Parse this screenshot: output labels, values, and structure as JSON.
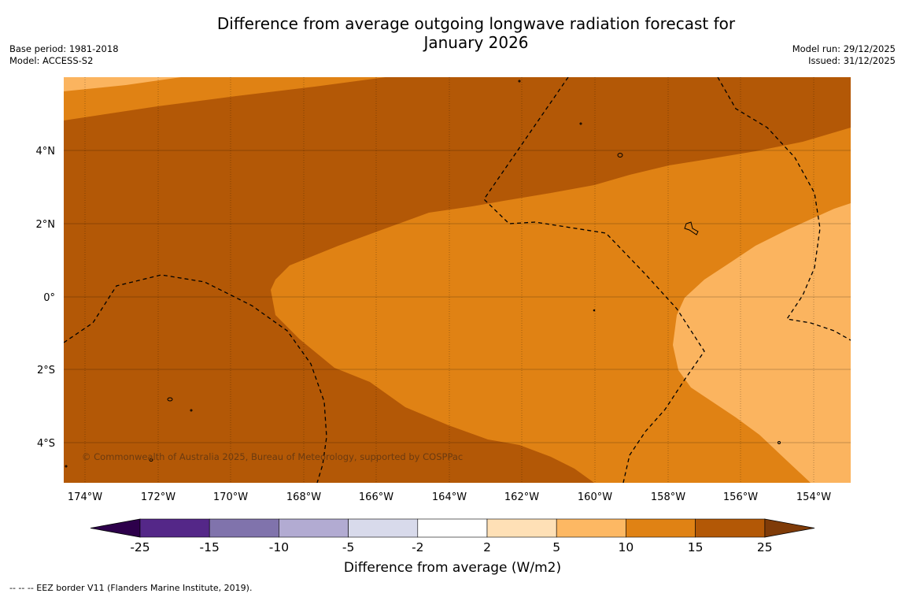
{
  "title": {
    "line1": "Difference from average outgoing longwave radiation forecast for",
    "line2": "January 2026"
  },
  "meta_left": {
    "base_period": "Base period: 1981-2018",
    "model": "Model: ACCESS-S2"
  },
  "meta_right": {
    "model_run": "Model run: 29/12/2025",
    "issued": "Issued: 31/12/2025"
  },
  "map": {
    "copyright": "© Commonwealth of Australia 2025, Bureau of Meteorology, supported by COSPPac",
    "lon_labels": [
      "174°W",
      "172°W",
      "170°W",
      "168°W",
      "166°W",
      "164°W",
      "162°W",
      "160°W",
      "158°W",
      "156°W",
      "154°W"
    ],
    "lat_labels": [
      "4°N",
      "2°N",
      "0°",
      "2°S",
      "4°S"
    ],
    "colors": {
      "c_5_10": "#fbb45f",
      "c_10_15": "#e08214",
      "c_15_25": "#b35806"
    }
  },
  "colorbar": {
    "label": "Difference from average (W/m2)",
    "ticks": [
      "-25",
      "-15",
      "-10",
      "-5",
      "-2",
      "2",
      "5",
      "10",
      "15",
      "25"
    ],
    "colors": [
      "#542788",
      "#8073ac",
      "#b2abd2",
      "#d8daeb",
      "#ffffff",
      "#fee0b6",
      "#fdb863",
      "#e08214",
      "#b35806"
    ],
    "extend_low": "#2d004b",
    "extend_high": "#7f3b08"
  },
  "footer": "--  --  -- EEZ border V11 (Flanders Marine Institute, 2019)."
}
